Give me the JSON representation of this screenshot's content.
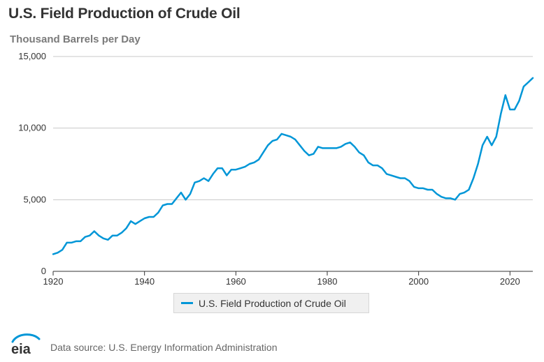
{
  "title": "U.S. Field Production of Crude Oil",
  "subtitle": "Thousand Barrels per Day",
  "legend": {
    "label": "U.S. Field Production of Crude Oil"
  },
  "footer": {
    "source": "Data source: U.S. Energy Information Administration"
  },
  "colors": {
    "series": "#0096d7",
    "grid": "#c8c8c8",
    "axis": "#333333",
    "logo_arc": "#0096d7"
  },
  "chart_data": {
    "type": "line",
    "title": "U.S. Field Production of Crude Oil",
    "ylabel": "Thousand Barrels per Day",
    "xlim": [
      1920,
      2025
    ],
    "ylim": [
      0,
      15000
    ],
    "xticks": [
      1920,
      1940,
      1960,
      1980,
      2000,
      2020
    ],
    "xtick_labels": [
      "1920",
      "1940",
      "1960",
      "1980",
      "2000",
      "2020"
    ],
    "yticks": [
      0,
      5000,
      10000,
      15000
    ],
    "ytick_labels": [
      "0",
      "5,000",
      "10,000",
      "15,000"
    ],
    "grid": "horizontal",
    "legend_position": "bottom-center",
    "series": [
      {
        "name": "U.S. Field Production of Crude Oil",
        "x": [
          1920,
          1921,
          1922,
          1923,
          1924,
          1925,
          1926,
          1927,
          1928,
          1929,
          1930,
          1931,
          1932,
          1933,
          1934,
          1935,
          1936,
          1937,
          1938,
          1939,
          1940,
          1941,
          1942,
          1943,
          1944,
          1945,
          1946,
          1947,
          1948,
          1949,
          1950,
          1951,
          1952,
          1953,
          1954,
          1955,
          1956,
          1957,
          1958,
          1959,
          1960,
          1961,
          1962,
          1963,
          1964,
          1965,
          1966,
          1967,
          1968,
          1969,
          1970,
          1971,
          1972,
          1973,
          1974,
          1975,
          1976,
          1977,
          1978,
          1979,
          1980,
          1981,
          1982,
          1983,
          1984,
          1985,
          1986,
          1987,
          1988,
          1989,
          1990,
          1991,
          1992,
          1993,
          1994,
          1995,
          1996,
          1997,
          1998,
          1999,
          2000,
          2001,
          2002,
          2003,
          2004,
          2005,
          2006,
          2007,
          2008,
          2009,
          2010,
          2011,
          2012,
          2013,
          2014,
          2015,
          2016,
          2017,
          2018,
          2019,
          2020,
          2021,
          2022,
          2023,
          2024,
          2025
        ],
        "values": [
          1200,
          1300,
          1500,
          2000,
          2000,
          2100,
          2100,
          2400,
          2500,
          2800,
          2500,
          2300,
          2200,
          2500,
          2500,
          2700,
          3000,
          3500,
          3300,
          3500,
          3700,
          3800,
          3800,
          4100,
          4600,
          4700,
          4700,
          5100,
          5500,
          5000,
          5400,
          6200,
          6300,
          6500,
          6300,
          6800,
          7200,
          7200,
          6700,
          7100,
          7100,
          7200,
          7300,
          7500,
          7600,
          7800,
          8300,
          8800,
          9100,
          9200,
          9600,
          9500,
          9400,
          9200,
          8800,
          8400,
          8100,
          8200,
          8700,
          8600,
          8600,
          8600,
          8600,
          8700,
          8900,
          9000,
          8700,
          8300,
          8100,
          7600,
          7400,
          7400,
          7200,
          6800,
          6700,
          6600,
          6500,
          6500,
          6300,
          5900,
          5800,
          5800,
          5700,
          5700,
          5400,
          5200,
          5100,
          5100,
          5000,
          5400,
          5500,
          5700,
          6500,
          7500,
          8800,
          9400,
          8800,
          9400,
          11000,
          12300,
          11300,
          11300,
          11900,
          12900,
          13200,
          13500
        ]
      }
    ]
  }
}
